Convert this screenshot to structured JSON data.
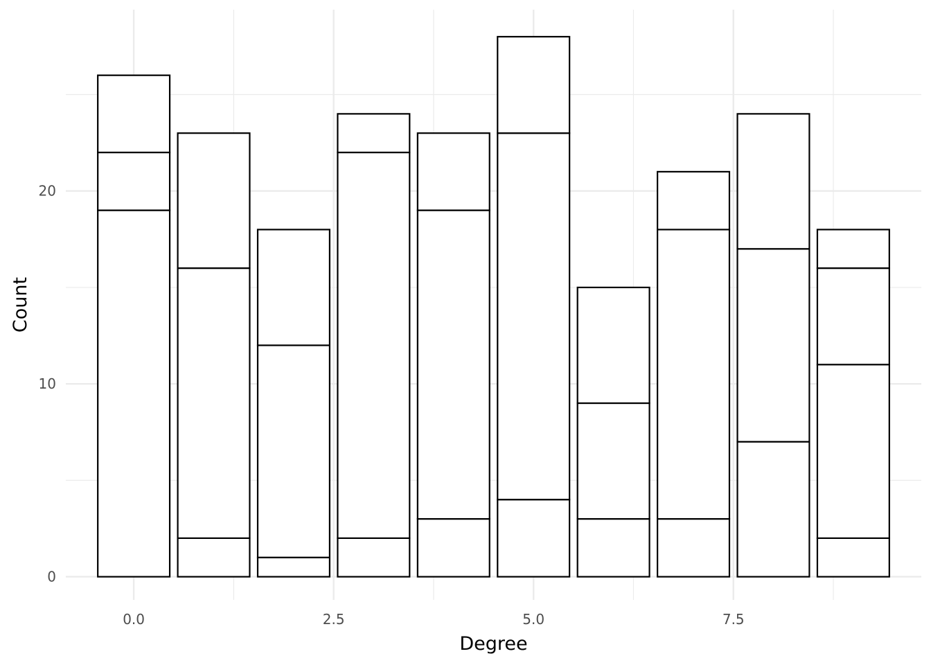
{
  "chart_data": {
    "type": "bar",
    "stacked": true,
    "title": "",
    "xlabel": "Degree",
    "ylabel": "Count",
    "xlim": [
      -0.85,
      9.85
    ],
    "ylim": [
      -1.2,
      29.4
    ],
    "x_ticks": [
      0.0,
      2.5,
      5.0,
      7.5
    ],
    "x_tick_labels": [
      "0.0",
      "2.5",
      "5.0",
      "7.5"
    ],
    "y_ticks": [
      0,
      10,
      20
    ],
    "y_tick_labels": [
      "0",
      "10",
      "20"
    ],
    "grid": true,
    "legend": "none",
    "bar_fill": "#ffffff",
    "bar_outline": "#000000",
    "grid_color": "#ebebeb",
    "x": [
      0,
      1,
      2,
      3,
      4,
      5,
      6,
      7,
      8,
      9
    ],
    "series": [
      {
        "values": [
          19,
          2,
          1,
          2,
          3,
          4,
          3,
          3,
          7,
          2
        ]
      },
      {
        "values": [
          3,
          14,
          11,
          20,
          16,
          19,
          6,
          15,
          10,
          9
        ]
      },
      {
        "values": [
          4,
          7,
          6,
          2,
          4,
          5,
          6,
          3,
          7,
          5
        ]
      },
      {
        "values": [
          0,
          0,
          0,
          0,
          0,
          0,
          0,
          0,
          0,
          2
        ]
      }
    ]
  }
}
